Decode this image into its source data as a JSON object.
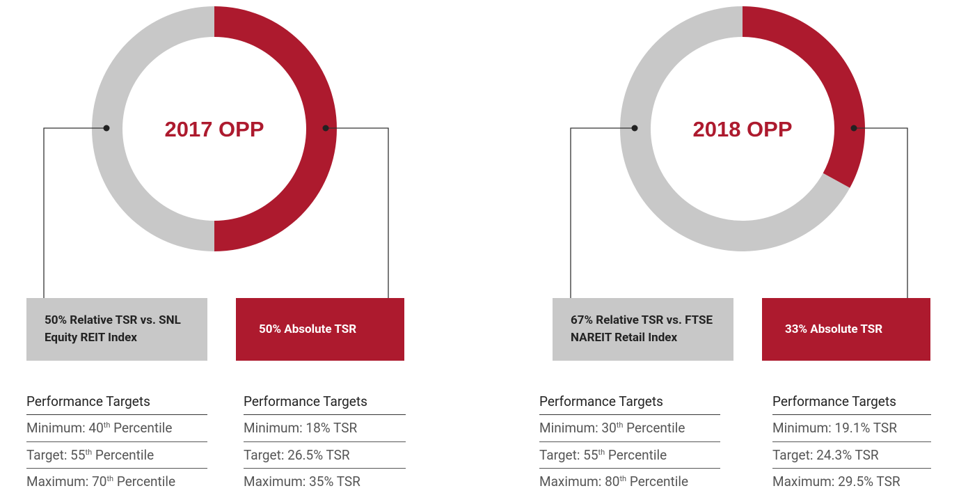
{
  "chart_data": [
    {
      "type": "pie",
      "title": "2017 OPP",
      "categories": [
        "50% Relative TSR vs. SNL Equity REIT Index",
        "50% Absolute TSR"
      ],
      "values": [
        50,
        50
      ],
      "colors": [
        "#c8c8c8",
        "#ad1a2e"
      ],
      "targets": [
        {
          "header": "Performance Targets",
          "rows": [
            {
              "text": "Minimum: 40",
              "sup": "th",
              "rest": " Percentile"
            },
            {
              "text": "Target: 55",
              "sup": "th",
              "rest": " Percentile"
            },
            {
              "text": "Maximum: 70",
              "sup": "th",
              "rest": " Percentile"
            }
          ]
        },
        {
          "header": "Performance Targets",
          "rows": [
            {
              "text": "Minimum: 18% TSR"
            },
            {
              "text": "Target: 26.5% TSR"
            },
            {
              "text": "Maximum: 35% TSR"
            }
          ]
        }
      ]
    },
    {
      "type": "pie",
      "title": "2018 OPP",
      "categories": [
        "67% Relative TSR vs. FTSE NAREIT Retail Index",
        "33% Absolute TSR"
      ],
      "values": [
        67,
        33
      ],
      "colors": [
        "#c8c8c8",
        "#ad1a2e"
      ],
      "targets": [
        {
          "header": "Performance Targets",
          "rows": [
            {
              "text": "Minimum: 30",
              "sup": "th",
              "rest": " Percentile"
            },
            {
              "text": "Target: 55",
              "sup": "th",
              "rest": " Percentile"
            },
            {
              "text": "Maximum: 80",
              "sup": "th",
              "rest": " Percentile"
            }
          ]
        },
        {
          "header": "Performance Targets",
          "rows": [
            {
              "text": "Minimum: 19.1% TSR"
            },
            {
              "text": "Target: 24.3% TSR"
            },
            {
              "text": "Maximum: 29.5% TSR"
            }
          ]
        }
      ]
    }
  ]
}
